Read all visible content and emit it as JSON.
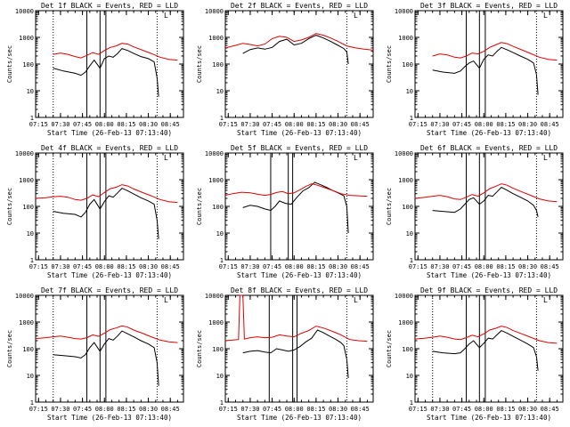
{
  "figure": {
    "background": "#ffffff",
    "events_color": "#000000",
    "lld_color": "#e00000"
  },
  "shared_axes": {
    "x_ticks": [
      "07:15",
      "07:30",
      "07:45",
      "08:00",
      "08:15",
      "08:30",
      "08:45"
    ],
    "y_ticks": [
      "1",
      "10",
      "100",
      "1000",
      "10000"
    ],
    "y_scale": "log",
    "ylim": [
      1,
      10000
    ],
    "xlim": [
      "07:13",
      "08:54"
    ],
    "xlabel": "Start Time (26-Feb-13 07:13:40)",
    "ylabel": "Counts/sec",
    "legend_mark": "L"
  },
  "chart_data": [
    {
      "type": "line",
      "title": "Det 1f BLACK = Events, RED = LLD",
      "dotted_vlines": [
        "07:25",
        "08:36"
      ],
      "solid_vlines": [
        "07:48",
        "07:57",
        "08:01"
      ],
      "series": [
        {
          "name": "Events",
          "color": "#000000",
          "x": [
            "07:25",
            "07:32",
            "07:40",
            "07:44",
            "07:47",
            "07:50",
            "07:53",
            "07:57",
            "08:00",
            "08:03",
            "08:06",
            "08:09",
            "08:12",
            "08:16",
            "08:20",
            "08:25",
            "08:30",
            "08:34",
            "08:36",
            "08:37"
          ],
          "y": [
            70,
            55,
            45,
            38,
            50,
            85,
            140,
            70,
            160,
            200,
            180,
            250,
            380,
            320,
            250,
            190,
            160,
            120,
            30,
            6
          ]
        },
        {
          "name": "LLD",
          "color": "#e00000",
          "x": [
            "07:25",
            "07:30",
            "07:35",
            "07:40",
            "07:44",
            "07:48",
            "07:52",
            "07:56",
            "08:00",
            "08:04",
            "08:08",
            "08:12",
            "08:16",
            "08:20",
            "08:26",
            "08:32",
            "08:38",
            "08:44",
            "08:50"
          ],
          "y": [
            230,
            260,
            230,
            190,
            170,
            210,
            270,
            230,
            320,
            420,
            480,
            600,
            560,
            440,
            330,
            250,
            180,
            150,
            140
          ]
        }
      ]
    },
    {
      "type": "line",
      "title": "Det 2f BLACK = Events, RED = LLD",
      "dotted_vlines": [
        "08:36"
      ],
      "solid_vlines": [],
      "series": [
        {
          "name": "Events",
          "color": "#000000",
          "x": [
            "07:25",
            "07:30",
            "07:35",
            "07:40",
            "07:45",
            "07:50",
            "07:55",
            "08:00",
            "08:05",
            "08:10",
            "08:15",
            "08:20",
            "08:25",
            "08:30",
            "08:34",
            "08:36",
            "08:37"
          ],
          "y": [
            250,
            350,
            400,
            360,
            420,
            700,
            850,
            520,
            600,
            900,
            1200,
            950,
            700,
            500,
            380,
            280,
            100
          ]
        },
        {
          "name": "LLD",
          "color": "#e00000",
          "x": [
            "07:13",
            "07:20",
            "07:25",
            "07:30",
            "07:35",
            "07:40",
            "07:45",
            "07:50",
            "07:55",
            "08:00",
            "08:05",
            "08:10",
            "08:15",
            "08:20",
            "08:25",
            "08:30",
            "08:36",
            "08:42",
            "08:48",
            "08:54"
          ],
          "y": [
            400,
            500,
            600,
            540,
            480,
            560,
            900,
            1100,
            1000,
            700,
            800,
            1000,
            1400,
            1200,
            950,
            700,
            480,
            400,
            360,
            330
          ]
        }
      ]
    },
    {
      "type": "line",
      "title": "Det 3f BLACK = Events, RED = LLD",
      "dotted_vlines": [
        "08:36"
      ],
      "solid_vlines": [
        "07:48",
        "07:57",
        "08:01"
      ],
      "series": [
        {
          "name": "Events",
          "color": "#000000",
          "x": [
            "07:25",
            "07:32",
            "07:40",
            "07:44",
            "07:47",
            "07:50",
            "07:53",
            "07:57",
            "08:00",
            "08:03",
            "08:06",
            "08:09",
            "08:12",
            "08:16",
            "08:20",
            "08:25",
            "08:30",
            "08:34",
            "08:36",
            "08:37"
          ],
          "y": [
            60,
            50,
            45,
            55,
            80,
            110,
            130,
            70,
            150,
            220,
            200,
            300,
            420,
            340,
            270,
            200,
            150,
            110,
            40,
            7
          ]
        },
        {
          "name": "LLD",
          "color": "#e00000",
          "x": [
            "07:25",
            "07:30",
            "07:35",
            "07:40",
            "07:44",
            "07:48",
            "07:52",
            "07:56",
            "08:00",
            "08:04",
            "08:08",
            "08:12",
            "08:16",
            "08:20",
            "08:26",
            "08:32",
            "08:38",
            "08:44",
            "08:50"
          ],
          "y": [
            200,
            240,
            220,
            180,
            170,
            200,
            260,
            240,
            300,
            420,
            520,
            640,
            580,
            460,
            340,
            250,
            180,
            150,
            140
          ]
        }
      ]
    },
    {
      "type": "line",
      "title": "Det 4f BLACK = Events, RED = LLD",
      "dotted_vlines": [
        "07:25",
        "08:36"
      ],
      "solid_vlines": [
        "07:48",
        "07:57",
        "08:01"
      ],
      "series": [
        {
          "name": "Events",
          "color": "#000000",
          "x": [
            "07:25",
            "07:32",
            "07:40",
            "07:44",
            "07:47",
            "07:50",
            "07:53",
            "07:57",
            "08:00",
            "08:03",
            "08:06",
            "08:09",
            "08:12",
            "08:16",
            "08:20",
            "08:25",
            "08:30",
            "08:34",
            "08:36",
            "08:37"
          ],
          "y": [
            65,
            55,
            50,
            40,
            60,
            120,
            180,
            80,
            150,
            250,
            220,
            320,
            480,
            380,
            290,
            210,
            160,
            120,
            30,
            6
          ]
        },
        {
          "name": "LLD",
          "color": "#e00000",
          "x": [
            "07:13",
            "07:20",
            "07:25",
            "07:30",
            "07:35",
            "07:40",
            "07:44",
            "07:48",
            "07:52",
            "07:56",
            "08:00",
            "08:04",
            "08:08",
            "08:12",
            "08:16",
            "08:20",
            "08:26",
            "08:32",
            "08:38",
            "08:44",
            "08:50"
          ],
          "y": [
            200,
            210,
            230,
            240,
            220,
            180,
            170,
            200,
            270,
            230,
            330,
            460,
            520,
            650,
            580,
            450,
            330,
            250,
            180,
            150,
            140
          ]
        }
      ]
    },
    {
      "type": "line",
      "title": "Det 5f BLACK = Events, RED = LLD",
      "dotted_vlines": [
        "08:36"
      ],
      "solid_vlines": [
        "07:44",
        "07:56",
        "07:59"
      ],
      "series": [
        {
          "name": "Events",
          "color": "#000000",
          "x": [
            "07:25",
            "07:30",
            "07:35",
            "07:40",
            "07:44",
            "07:47",
            "07:50",
            "07:54",
            "07:58",
            "08:02",
            "08:06",
            "08:10",
            "08:14",
            "08:18",
            "08:22",
            "08:26",
            "08:30",
            "08:34",
            "08:36",
            "08:37"
          ],
          "y": [
            90,
            110,
            100,
            80,
            70,
            100,
            160,
            130,
            120,
            220,
            380,
            500,
            800,
            650,
            520,
            400,
            320,
            250,
            100,
            10
          ]
        },
        {
          "name": "LLD",
          "color": "#e00000",
          "x": [
            "07:13",
            "07:18",
            "07:24",
            "07:30",
            "07:36",
            "07:40",
            "07:44",
            "07:48",
            "07:52",
            "07:56",
            "08:00",
            "08:04",
            "08:08",
            "08:12",
            "08:16",
            "08:20",
            "08:26",
            "08:32",
            "08:38",
            "08:44",
            "08:50"
          ],
          "y": [
            260,
            300,
            340,
            320,
            280,
            260,
            280,
            330,
            360,
            300,
            320,
            420,
            560,
            700,
            620,
            520,
            400,
            300,
            260,
            250,
            240
          ]
        }
      ]
    },
    {
      "type": "line",
      "title": "Det 6f BLACK = Events, RED = LLD",
      "dotted_vlines": [
        "08:36"
      ],
      "solid_vlines": [
        "07:48",
        "07:57",
        "08:01"
      ],
      "series": [
        {
          "name": "Events",
          "color": "#000000",
          "x": [
            "07:25",
            "07:32",
            "07:40",
            "07:44",
            "07:47",
            "07:50",
            "07:53",
            "07:57",
            "08:00",
            "08:03",
            "08:06",
            "08:09",
            "08:12",
            "08:16",
            "08:20",
            "08:25",
            "08:30",
            "08:34",
            "08:36",
            "08:37"
          ],
          "y": [
            70,
            65,
            60,
            80,
            120,
            180,
            210,
            120,
            160,
            260,
            240,
            350,
            520,
            400,
            300,
            220,
            160,
            110,
            70,
            40
          ]
        },
        {
          "name": "LLD",
          "color": "#e00000",
          "x": [
            "07:13",
            "07:20",
            "07:25",
            "07:30",
            "07:35",
            "07:40",
            "07:44",
            "07:48",
            "07:52",
            "07:56",
            "08:00",
            "08:04",
            "08:08",
            "08:12",
            "08:16",
            "08:20",
            "08:26",
            "08:32",
            "08:38",
            "08:44",
            "08:50"
          ],
          "y": [
            200,
            220,
            240,
            260,
            230,
            190,
            180,
            220,
            280,
            240,
            320,
            460,
            560,
            700,
            620,
            480,
            350,
            260,
            190,
            160,
            150
          ]
        }
      ]
    },
    {
      "type": "line",
      "title": "Det 7f BLACK = Events, RED = LLD",
      "dotted_vlines": [
        "07:25",
        "08:36"
      ],
      "solid_vlines": [
        "07:48",
        "07:57",
        "08:01"
      ],
      "series": [
        {
          "name": "Events",
          "color": "#000000",
          "x": [
            "07:25",
            "07:32",
            "07:40",
            "07:44",
            "07:47",
            "07:50",
            "07:53",
            "07:57",
            "08:00",
            "08:03",
            "08:06",
            "08:09",
            "08:12",
            "08:16",
            "08:20",
            "08:25",
            "08:30",
            "08:34",
            "08:36",
            "08:37"
          ],
          "y": [
            60,
            55,
            50,
            45,
            60,
            110,
            170,
            80,
            150,
            240,
            210,
            300,
            460,
            360,
            280,
            200,
            150,
            110,
            30,
            4
          ]
        },
        {
          "name": "LLD",
          "color": "#e00000",
          "x": [
            "07:13",
            "07:20",
            "07:25",
            "07:30",
            "07:35",
            "07:40",
            "07:44",
            "07:48",
            "07:52",
            "07:56",
            "08:00",
            "08:04",
            "08:08",
            "08:12",
            "08:16",
            "08:20",
            "08:26",
            "08:32",
            "08:38",
            "08:44",
            "08:50"
          ],
          "y": [
            240,
            260,
            280,
            300,
            270,
            240,
            230,
            260,
            330,
            290,
            380,
            520,
            600,
            720,
            640,
            500,
            380,
            280,
            210,
            180,
            170
          ]
        }
      ]
    },
    {
      "type": "line",
      "title": "Det 8f BLACK = Events, RED = LLD",
      "dotted_vlines": [
        "08:36"
      ],
      "solid_vlines": [
        "07:43",
        "07:59",
        "08:02"
      ],
      "series": [
        {
          "name": "Events",
          "color": "#000000",
          "x": [
            "07:25",
            "07:30",
            "07:35",
            "07:40",
            "07:44",
            "07:48",
            "07:52",
            "07:56",
            "08:00",
            "08:04",
            "08:08",
            "08:12",
            "08:16",
            "08:20",
            "08:24",
            "08:28",
            "08:32",
            "08:34",
            "08:36",
            "08:37"
          ],
          "y": [
            70,
            80,
            85,
            75,
            70,
            100,
            90,
            80,
            90,
            120,
            180,
            250,
            500,
            400,
            300,
            230,
            170,
            130,
            40,
            8
          ]
        },
        {
          "name": "LLD",
          "color": "#e00000",
          "x": [
            "07:13",
            "07:18",
            "07:22",
            "07:23",
            "07:24",
            "07:25",
            "07:26",
            "07:30",
            "07:35",
            "07:40",
            "07:45",
            "07:50",
            "07:55",
            "08:00",
            "08:05",
            "08:10",
            "08:15",
            "08:20",
            "08:26",
            "08:32",
            "08:38",
            "08:44",
            "08:50"
          ],
          "y": [
            200,
            210,
            220,
            10000,
            10000,
            10000,
            230,
            260,
            280,
            260,
            270,
            330,
            300,
            280,
            380,
            480,
            700,
            600,
            450,
            330,
            220,
            200,
            190
          ]
        }
      ]
    },
    {
      "type": "line",
      "title": "Det 9f BLACK = Events, RED = LLD",
      "dotted_vlines": [
        "07:25",
        "08:36"
      ],
      "solid_vlines": [
        "07:48",
        "07:57",
        "08:01"
      ],
      "series": [
        {
          "name": "Events",
          "color": "#000000",
          "x": [
            "07:25",
            "07:32",
            "07:40",
            "07:44",
            "07:47",
            "07:50",
            "07:53",
            "07:57",
            "08:00",
            "08:03",
            "08:06",
            "08:09",
            "08:12",
            "08:16",
            "08:20",
            "08:25",
            "08:30",
            "08:34",
            "08:36",
            "08:37"
          ],
          "y": [
            80,
            70,
            65,
            70,
            100,
            150,
            200,
            110,
            160,
            250,
            230,
            330,
            480,
            380,
            290,
            210,
            150,
            110,
            50,
            15
          ]
        },
        {
          "name": "LLD",
          "color": "#e00000",
          "x": [
            "07:13",
            "07:20",
            "07:25",
            "07:30",
            "07:35",
            "07:40",
            "07:44",
            "07:48",
            "07:52",
            "07:56",
            "08:00",
            "08:04",
            "08:08",
            "08:12",
            "08:16",
            "08:20",
            "08:26",
            "08:32",
            "08:38",
            "08:44",
            "08:50"
          ],
          "y": [
            230,
            250,
            270,
            300,
            270,
            230,
            220,
            260,
            320,
            280,
            360,
            500,
            580,
            700,
            620,
            480,
            360,
            270,
            200,
            170,
            160
          ]
        }
      ]
    }
  ]
}
